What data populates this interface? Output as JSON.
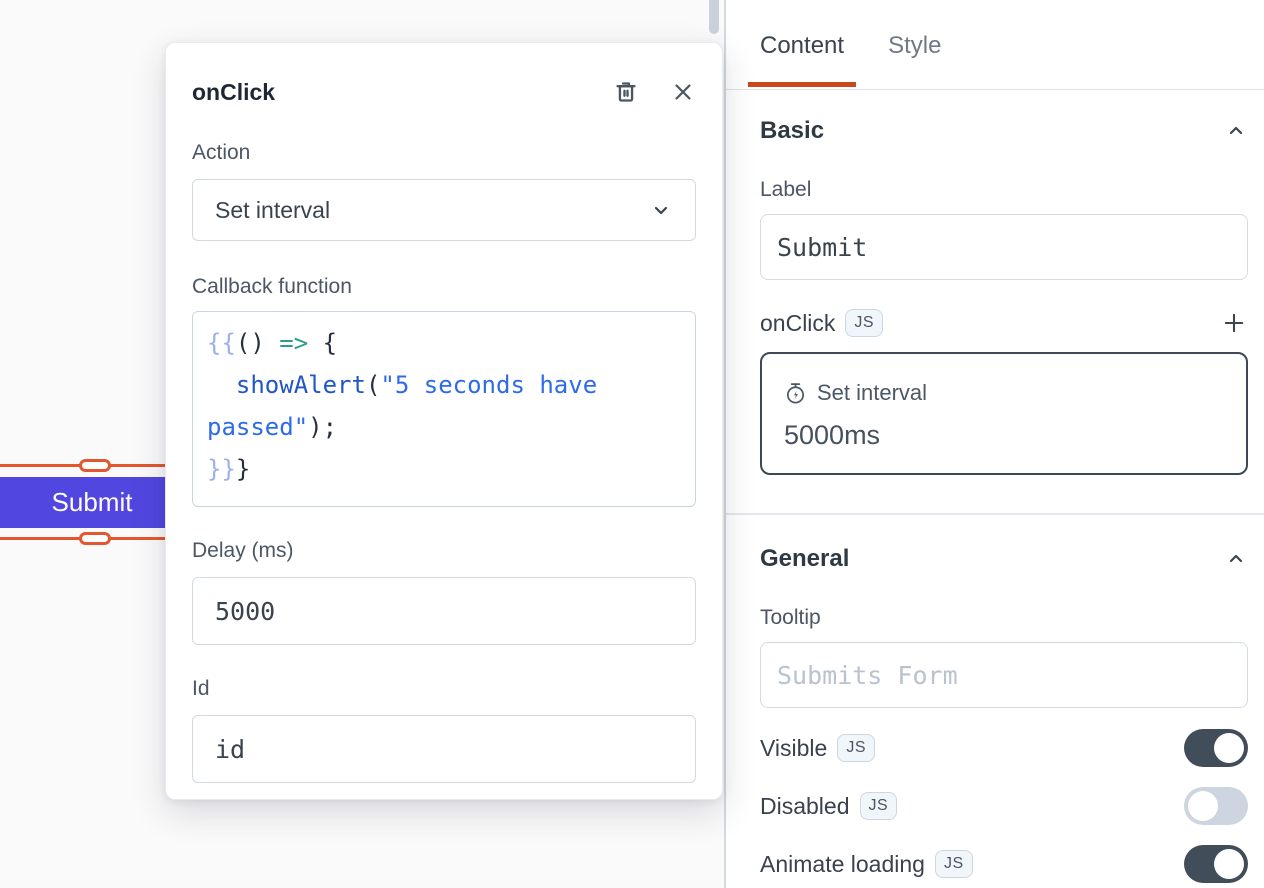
{
  "canvas": {
    "submit_button": {
      "label": "Submit"
    }
  },
  "popup": {
    "title": "onClick",
    "action": {
      "label": "Action",
      "value": "Set interval"
    },
    "callback": {
      "label": "Callback function"
    },
    "delay": {
      "label": "Delay (ms)",
      "value": "5000"
    },
    "id": {
      "label": "Id",
      "value": "id"
    },
    "code_lines": [
      [
        {
          "t": "{{",
          "c": "brace"
        },
        {
          "t": "() ",
          "c": "plain"
        },
        {
          "t": "=>",
          "c": "arrow"
        },
        {
          "t": " {",
          "c": "plain"
        }
      ],
      [
        {
          "t": "  ",
          "c": "plain"
        },
        {
          "t": "showAlert",
          "c": "func"
        },
        {
          "t": "(",
          "c": "plain"
        },
        {
          "t": "\"5 seconds have",
          "c": "string"
        }
      ],
      [
        {
          "t": "passed\"",
          "c": "string"
        },
        {
          "t": ");",
          "c": "plain"
        }
      ],
      [
        {
          "t": "}}",
          "c": "brace"
        },
        {
          "t": "}",
          "c": "plain"
        }
      ]
    ]
  },
  "panel": {
    "tabs": [
      {
        "label": "Content"
      },
      {
        "label": "Style"
      }
    ],
    "basic": {
      "title": "Basic",
      "label_field": {
        "label": "Label",
        "value": "Submit"
      },
      "onclick_row": {
        "label": "onClick",
        "badge": "JS"
      },
      "event_card": {
        "action": "Set interval",
        "detail": "5000ms"
      }
    },
    "general": {
      "title": "General",
      "tooltip": {
        "label": "Tooltip",
        "placeholder": "Submits Form"
      },
      "toggle_rows": [
        {
          "label": "Visible",
          "badge": "JS",
          "on": true
        },
        {
          "label": "Disabled",
          "badge": "JS",
          "on": false
        },
        {
          "label": "Animate loading",
          "badge": "JS",
          "on": true
        }
      ]
    }
  },
  "colors": {
    "button": "#5246E0",
    "selection_orange": "#E4572E",
    "tab_underline": "#C8491D",
    "toggle_on": "#424D5A",
    "toggle_off": "#CDD5E0",
    "code": {
      "brace": "#9FAFE8",
      "arrow": "#2A9D8F",
      "func": "#1F57C6",
      "string": "#2D6BE8",
      "plain": "#252F42"
    }
  }
}
